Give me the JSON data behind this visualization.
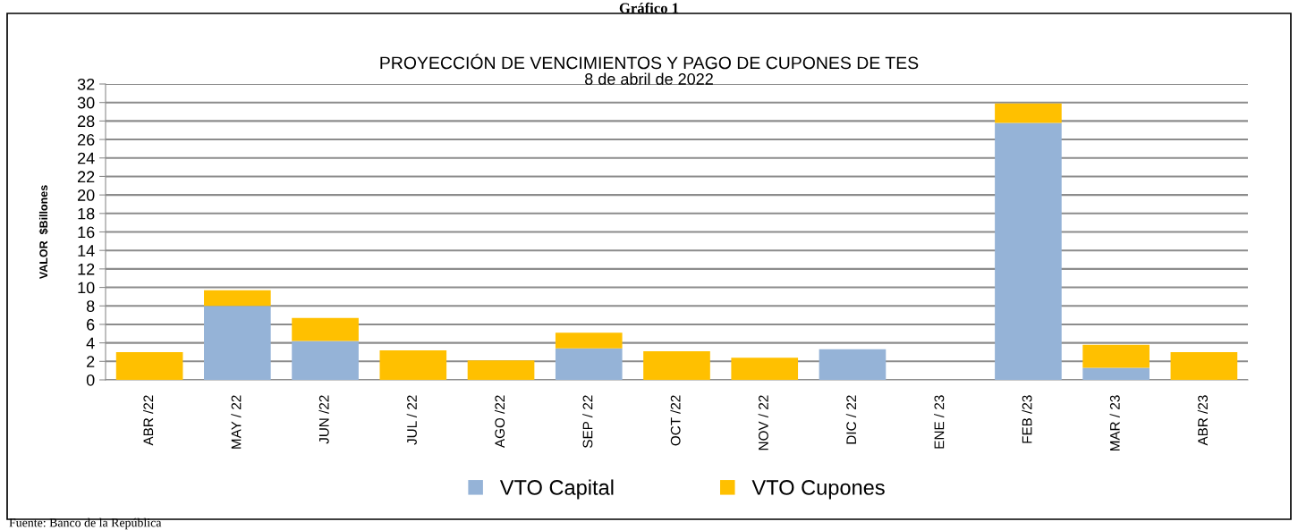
{
  "chart_data": {
    "type": "bar",
    "title": "PROYECCIÓN DE VENCIMIENTOS Y PAGO DE CUPONES DE TES",
    "subtitle": "8 de abril de 2022",
    "ylabel": "VALOR  $Billones",
    "annotations": [
      "Gráfico 1",
      "Fuente: Banco de la República"
    ],
    "categories": [
      "ABR /22",
      "MAY / 22",
      "JUN /22",
      "JUL / 22",
      "AGO /22",
      "SEP / 22",
      "OCT /22",
      "NOV / 22",
      "DIC / 22",
      "ENE / 23",
      "FEB /23",
      "MAR / 23",
      "ABR /23"
    ],
    "stacked": true,
    "series": [
      {
        "name": "VTO Capital",
        "color": "#95b3d7",
        "values": [
          0,
          8.0,
          4.2,
          0,
          0,
          3.4,
          0,
          0,
          3.3,
          0,
          27.8,
          1.3,
          0
        ]
      },
      {
        "name": "VTO Cupones",
        "color": "#ffc000",
        "values": [
          3.0,
          1.7,
          2.5,
          3.2,
          2.1,
          1.7,
          3.1,
          2.4,
          0,
          0,
          2.1,
          2.5,
          3.0
        ]
      }
    ],
    "ylim": [
      0,
      32
    ],
    "yticks": [
      0,
      2,
      4,
      6,
      8,
      10,
      12,
      14,
      16,
      18,
      20,
      22,
      24,
      26,
      28,
      30,
      32
    ],
    "grid": "y",
    "legend": "bottom"
  }
}
